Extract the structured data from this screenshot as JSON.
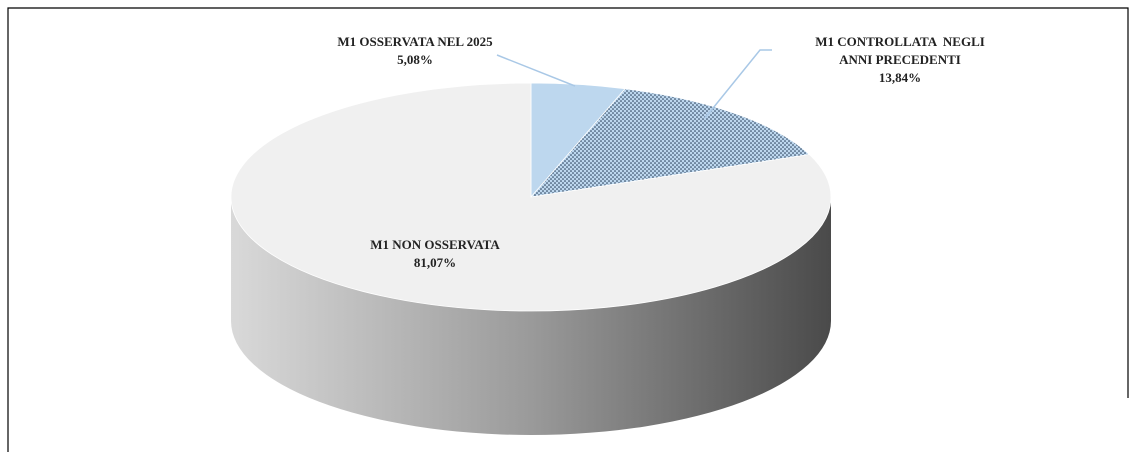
{
  "chart_data": {
    "type": "pie",
    "categories": [
      "M1 OSSERVATA NEL 2025",
      "M1 CONTROLLATA  NEGLI ANNI PRECEDENTI",
      "M1 NON OSSERVATA"
    ],
    "values": [
      5.08,
      13.84,
      81.07
    ],
    "value_labels": [
      "5,08%",
      "13,84%",
      "81,07%"
    ],
    "colors": [
      "#bdd7ee",
      "#bdd7ee",
      "#f0f0f0"
    ],
    "patterns": [
      null,
      "dotted",
      null
    ],
    "three_d": true
  }
}
